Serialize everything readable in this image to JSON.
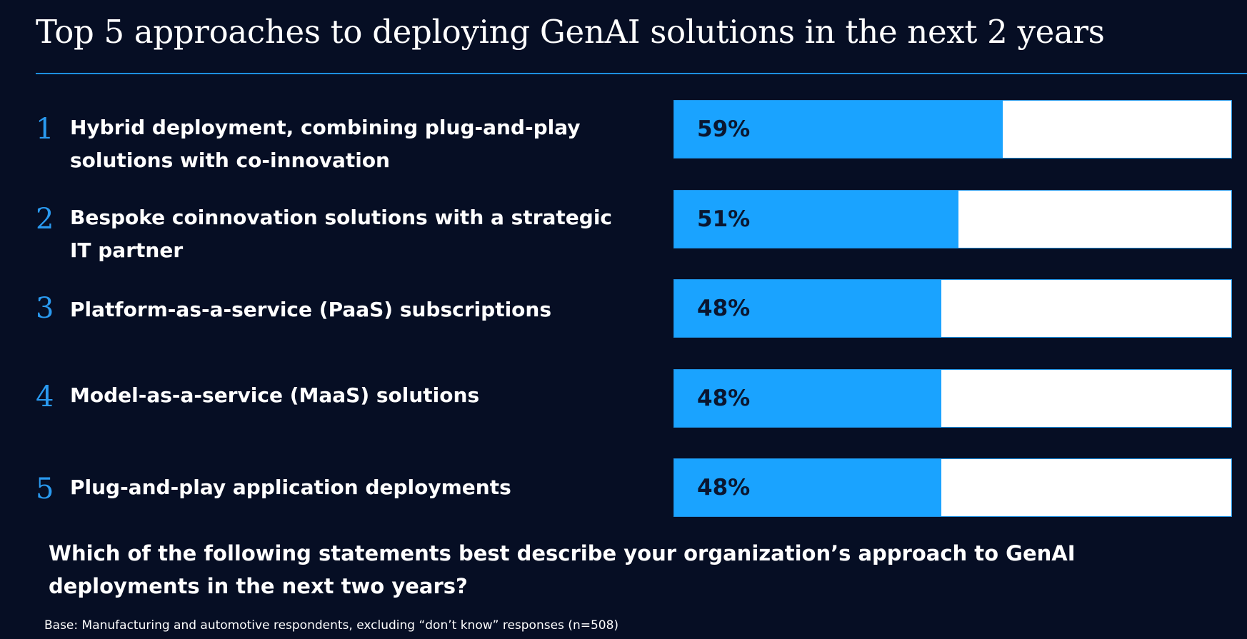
{
  "chart_data": {
    "type": "bar",
    "orientation": "horizontal",
    "title": "Top 5 approaches to deploying GenAI solutions in the next 2 years",
    "question": "Which of the following statements best describe your organization’s approach to GenAI deployments in the next two years?",
    "base_note": "Base: Manufacturing and automotive respondents, excluding “don’t know” responses (n=508)",
    "xlim": [
      0,
      100
    ],
    "grid": false,
    "legend": "none",
    "colors": {
      "fill": "#1aa3ff",
      "track": "#ffffff",
      "rank": "#2a9af0",
      "background": "#060e24"
    },
    "items": [
      {
        "rank": "1",
        "label": "Hybrid deployment, combining plug-and-play solutions with co-innovation",
        "value": 59,
        "value_label": "59%"
      },
      {
        "rank": "2",
        "label": "Bespoke coinnovation solutions with a strategic IT partner",
        "value": 51,
        "value_label": "51%"
      },
      {
        "rank": "3",
        "label": "Platform-as-a-service (PaaS) subscriptions",
        "value": 48,
        "value_label": "48%"
      },
      {
        "rank": "4",
        "label": "Model-as-a-service (MaaS) solutions",
        "value": 48,
        "value_label": "48%"
      },
      {
        "rank": "5",
        "label": "Plug-and-play application deployments",
        "value": 48,
        "value_label": "48%"
      }
    ]
  }
}
